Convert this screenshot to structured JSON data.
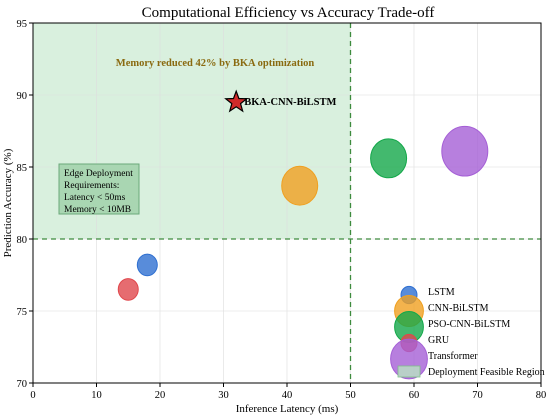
{
  "chart_data": {
    "type": "scatter",
    "title": "Computational Efficiency vs Accuracy Trade-off",
    "xlabel": "Inference Latency (ms)",
    "ylabel": "Prediction Accuracy (%)",
    "xlim": [
      0,
      80
    ],
    "ylim": [
      70,
      95
    ],
    "xticks": [
      0,
      10,
      20,
      30,
      40,
      50,
      60,
      70,
      80
    ],
    "yticks": [
      70,
      75,
      80,
      85,
      90,
      95
    ],
    "grid": true,
    "legend_position": "bottom-right",
    "feasible_region": {
      "x_max": 50,
      "y_min": 80,
      "color": "#b9e3c2",
      "label": "Deployment Feasible Region"
    },
    "threshold_lines": {
      "x": 50,
      "y": 80,
      "color": "#3d8b3d"
    },
    "series": [
      {
        "name": "LSTM",
        "color": "#2e6fd1",
        "points": [
          {
            "x": 18,
            "y": 78.2,
            "size": 1.0
          }
        ]
      },
      {
        "name": "CNN-BiLSTM",
        "color": "#f0a020",
        "points": [
          {
            "x": 42,
            "y": 83.7,
            "size": 1.8
          }
        ]
      },
      {
        "name": "PSO-CNN-BiLSTM",
        "color": "#14a84a",
        "points": [
          {
            "x": 56,
            "y": 85.6,
            "size": 1.8
          }
        ]
      },
      {
        "name": "GRU",
        "color": "#e0474c",
        "points": [
          {
            "x": 15,
            "y": 76.5,
            "size": 1.0
          }
        ]
      },
      {
        "name": "Transformer",
        "color": "#a55fd6",
        "points": [
          {
            "x": 68,
            "y": 86.1,
            "size": 2.3
          }
        ]
      }
    ],
    "highlight": {
      "label": "BKA-CNN-BiLSTM",
      "x": 32,
      "y": 89.5,
      "marker": "star",
      "color": "#d02a2a"
    },
    "annotations": {
      "memory_note": "Memory reduced 42% by BKA optimization",
      "edge_box_lines": [
        "Edge Deployment",
        "Requirements:",
        "Latency < 50ms",
        "Memory < 10MB"
      ]
    }
  }
}
